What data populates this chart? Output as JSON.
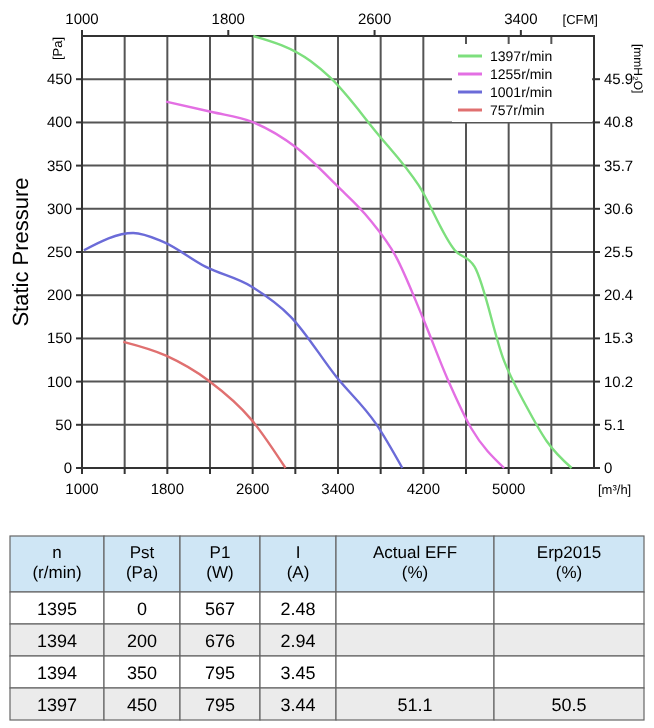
{
  "chart_data": [
    {
      "type": "line",
      "ylabel": "Static Pressure",
      "xlabel": "[m³/h]",
      "x2label": "[CFM]",
      "y2label": "[mmH₂O]",
      "annotations": [
        "[Pa]"
      ],
      "xlim": [
        1000,
        5800
      ],
      "xticks": [
        1000,
        {
          "value": 1400,
          "label": null
        },
        1800,
        {
          "value": 2200,
          "label": null
        },
        2600,
        {
          "value": 3000,
          "label": null
        },
        3400,
        {
          "value": 3800,
          "label": null
        },
        4200,
        {
          "value": 4600,
          "label": null
        },
        5000,
        {
          "value": 5400,
          "label": null
        }
      ],
      "x2lim": [
        1000,
        3800
      ],
      "x2ticks": [
        1000,
        1800,
        2600,
        3400
      ],
      "ylim": [
        0,
        500
      ],
      "yticks": [
        0,
        50,
        100,
        150,
        200,
        250,
        300,
        350,
        400,
        450
      ],
      "y2lim": [
        0,
        51
      ],
      "y2ticks": [
        0,
        5.1,
        10.2,
        15.3,
        20.4,
        25.5,
        30.6,
        35.7,
        40.8,
        45.9
      ],
      "grid": true,
      "legend": "top right",
      "line_style": "solid",
      "marker": "none",
      "series": [
        {
          "name": "1397r/min",
          "color": "#7ddf7d",
          "x": [
            2606,
            3142,
            3326,
            3757,
            4157,
            4495,
            4680,
            4957,
            5172,
            5357,
            5590
          ],
          "values": [
            500,
            471,
            452,
            389,
            327,
            252,
            233,
            124,
            70,
            31,
            0
          ]
        },
        {
          "name": "1255r/min",
          "color": "#e36fe3",
          "x": [
            1788,
            2218,
            2588,
            3018,
            3388,
            3695,
            3942,
            4188,
            4434,
            4649,
            4957
          ],
          "values": [
            424,
            412,
            401,
            370,
            327,
            288,
            245,
            176,
            101,
            46,
            0
          ]
        },
        {
          "name": "1001r/min",
          "color": "#6b6bd8",
          "x": [
            1018,
            1480,
            1757,
            2157,
            2588,
            2957,
            3388,
            3757,
            4003
          ],
          "values": [
            252,
            272,
            262,
            233,
            210,
            175,
            105,
            51,
            0
          ]
        },
        {
          "name": "757r/min",
          "color": "#e07070",
          "x": [
            1388,
            1788,
            2188,
            2588,
            2908
          ],
          "values": [
            146,
            130,
            101,
            56,
            0
          ]
        }
      ]
    },
    {
      "type": "other",
      "annotations": [
        "n\n(r/min)",
        "Pst\n(Pa)",
        "P1\n(W)",
        "I\n(A)",
        "Actual EFF\n(%)",
        "Erp2015\n(%)",
        "1395",
        "0",
        "567",
        "2.48",
        null,
        null,
        "1394",
        "200",
        "676",
        "2.94",
        null,
        null,
        "1394",
        "350",
        "795",
        "3.45",
        null,
        null,
        "1397",
        "450",
        "795",
        "3.44",
        "51.1",
        "50.5"
      ]
    }
  ]
}
